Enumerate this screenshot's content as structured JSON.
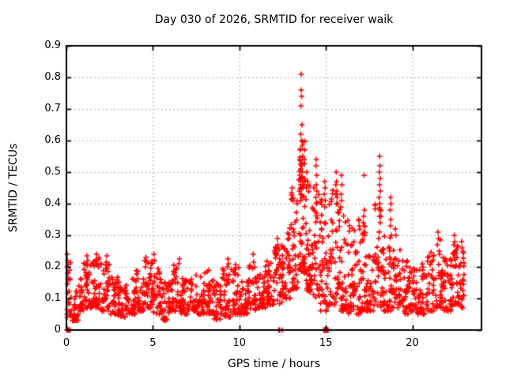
{
  "title": "Day 030 of 2026, SRMTID for receiver waik",
  "chart_data": {
    "type": "scatter",
    "title": "Day 030 of 2026, SRMTID for receiver waik",
    "xlabel": "GPS time / hours",
    "ylabel": "SRMTID / TECUs",
    "xlim": [
      0,
      24
    ],
    "ylim": [
      0,
      0.9
    ],
    "xticks": [
      0,
      5,
      10,
      15,
      20
    ],
    "yticks": [
      0,
      0.1,
      0.2,
      0.3,
      0.4,
      0.5,
      0.6,
      0.7,
      0.8,
      0.9
    ],
    "grid": true,
    "legend": "none",
    "marker": "plus",
    "marker_color": "#ff0000",
    "grid_color": "#9a9a9a",
    "border_color": "#000000",
    "peak_points": [
      [
        0.05,
        0.24
      ],
      [
        0.07,
        0.22
      ],
      [
        0.04,
        0.2
      ],
      [
        0.08,
        0.18
      ],
      [
        1.18,
        0.235
      ],
      [
        1.22,
        0.22
      ],
      [
        1.14,
        0.21
      ],
      [
        1.74,
        0.24
      ],
      [
        1.7,
        0.22
      ],
      [
        1.78,
        0.21
      ],
      [
        2.34,
        0.235
      ],
      [
        2.3,
        0.215
      ],
      [
        4.6,
        0.23
      ],
      [
        4.64,
        0.215
      ],
      [
        4.57,
        0.2
      ],
      [
        5.06,
        0.24
      ],
      [
        5.1,
        0.22
      ],
      [
        6.54,
        0.225
      ],
      [
        6.5,
        0.21
      ],
      [
        9.34,
        0.225
      ],
      [
        9.38,
        0.21
      ],
      [
        9.3,
        0.2
      ],
      [
        10.8,
        0.24
      ],
      [
        10.83,
        0.215
      ],
      [
        10.77,
        0.195
      ],
      [
        12.2,
        0.29
      ],
      [
        12.23,
        0.27
      ],
      [
        12.17,
        0.25
      ],
      [
        13.05,
        0.45
      ],
      [
        13.1,
        0.42
      ],
      [
        13.58,
        0.81
      ],
      [
        13.57,
        0.76
      ],
      [
        13.6,
        0.74
      ],
      [
        13.56,
        0.71
      ],
      [
        13.62,
        0.65
      ],
      [
        13.55,
        0.62
      ],
      [
        13.6,
        0.6
      ],
      [
        13.64,
        0.585
      ],
      [
        13.52,
        0.57
      ],
      [
        13.66,
        0.55
      ],
      [
        13.5,
        0.54
      ],
      [
        13.59,
        0.53
      ],
      [
        13.61,
        0.52
      ],
      [
        13.55,
        0.51
      ],
      [
        13.63,
        0.5
      ],
      [
        13.49,
        0.49
      ],
      [
        13.57,
        0.48
      ],
      [
        13.65,
        0.47
      ],
      [
        13.53,
        0.46
      ],
      [
        13.68,
        0.45
      ],
      [
        13.47,
        0.44
      ],
      [
        13.59,
        0.43
      ],
      [
        13.62,
        0.42
      ],
      [
        13.54,
        0.41
      ],
      [
        13.9,
        0.5
      ],
      [
        13.95,
        0.47
      ],
      [
        13.88,
        0.45
      ],
      [
        14.45,
        0.54
      ],
      [
        14.43,
        0.52
      ],
      [
        14.47,
        0.49
      ],
      [
        14.44,
        0.46
      ],
      [
        14.48,
        0.44
      ],
      [
        14.42,
        0.42
      ],
      [
        14.46,
        0.4
      ],
      [
        14.93,
        0.47
      ],
      [
        14.96,
        0.45
      ],
      [
        14.91,
        0.43
      ],
      [
        14.97,
        0.41
      ],
      [
        14.94,
        0.39
      ],
      [
        15.6,
        0.5
      ],
      [
        15.62,
        0.47
      ],
      [
        15.58,
        0.46
      ],
      [
        15.64,
        0.44
      ],
      [
        15.59,
        0.43
      ],
      [
        15.65,
        0.42
      ],
      [
        15.61,
        0.4
      ],
      [
        15.9,
        0.49
      ],
      [
        15.93,
        0.46
      ],
      [
        15.88,
        0.43
      ],
      [
        15.91,
        0.41
      ],
      [
        16.9,
        0.35
      ],
      [
        16.93,
        0.33
      ],
      [
        17.21,
        0.49
      ],
      [
        17.23,
        0.38
      ],
      [
        17.19,
        0.36
      ],
      [
        17.24,
        0.33
      ],
      [
        17.2,
        0.31
      ],
      [
        18.11,
        0.55
      ],
      [
        18.13,
        0.52
      ],
      [
        18.09,
        0.5
      ],
      [
        18.14,
        0.48
      ],
      [
        18.1,
        0.46
      ],
      [
        18.15,
        0.44
      ],
      [
        18.08,
        0.42
      ],
      [
        18.12,
        0.4
      ],
      [
        18.16,
        0.38
      ],
      [
        18.1,
        0.36
      ],
      [
        18.14,
        0.34
      ],
      [
        18.74,
        0.42
      ],
      [
        18.77,
        0.4
      ],
      [
        18.72,
        0.38
      ],
      [
        18.76,
        0.35
      ],
      [
        18.73,
        0.33
      ],
      [
        18.78,
        0.3
      ],
      [
        19.02,
        0.32
      ],
      [
        19.05,
        0.3
      ],
      [
        21.48,
        0.31
      ],
      [
        21.52,
        0.29
      ],
      [
        21.45,
        0.27
      ],
      [
        21.55,
        0.25
      ],
      [
        22.42,
        0.3
      ],
      [
        22.46,
        0.28
      ],
      [
        22.4,
        0.27
      ],
      [
        22.48,
        0.25
      ],
      [
        22.44,
        0.23
      ],
      [
        22.85,
        0.28
      ],
      [
        22.88,
        0.26
      ]
    ],
    "zero_points": [
      0.03,
      0.08,
      0.14,
      0.22,
      12.28,
      12.33,
      12.47,
      14.88,
      14.92,
      14.95,
      14.98,
      15.01,
      15.04,
      15.07,
      15.1,
      15.13
    ],
    "band_segments": [
      [
        0.0,
        0.3,
        22,
        0.04,
        0.22
      ],
      [
        0.3,
        0.7,
        26,
        0.03,
        0.13
      ],
      [
        0.7,
        1.0,
        22,
        0.06,
        0.17
      ],
      [
        1.0,
        1.5,
        36,
        0.07,
        0.22
      ],
      [
        1.5,
        2.0,
        36,
        0.07,
        0.23
      ],
      [
        2.0,
        2.5,
        36,
        0.06,
        0.21
      ],
      [
        2.5,
        3.0,
        34,
        0.05,
        0.18
      ],
      [
        3.0,
        3.5,
        32,
        0.04,
        0.16
      ],
      [
        3.5,
        4.0,
        34,
        0.05,
        0.18
      ],
      [
        4.0,
        4.5,
        34,
        0.06,
        0.2
      ],
      [
        4.5,
        5.0,
        36,
        0.07,
        0.22
      ],
      [
        5.0,
        5.5,
        34,
        0.05,
        0.21
      ],
      [
        5.5,
        6.0,
        32,
        0.03,
        0.17
      ],
      [
        6.0,
        6.5,
        34,
        0.06,
        0.21
      ],
      [
        6.5,
        7.0,
        34,
        0.05,
        0.19
      ],
      [
        7.0,
        7.5,
        34,
        0.06,
        0.18
      ],
      [
        7.5,
        8.0,
        32,
        0.05,
        0.17
      ],
      [
        8.0,
        8.5,
        34,
        0.05,
        0.19
      ],
      [
        8.5,
        9.0,
        32,
        0.03,
        0.16
      ],
      [
        9.0,
        9.5,
        34,
        0.04,
        0.2
      ],
      [
        9.5,
        10.0,
        34,
        0.05,
        0.21
      ],
      [
        10.0,
        10.5,
        32,
        0.05,
        0.16
      ],
      [
        10.5,
        11.0,
        34,
        0.06,
        0.21
      ],
      [
        11.0,
        11.5,
        34,
        0.07,
        0.19
      ],
      [
        11.5,
        12.0,
        36,
        0.08,
        0.22
      ],
      [
        12.0,
        12.5,
        38,
        0.08,
        0.27
      ],
      [
        12.5,
        13.0,
        40,
        0.1,
        0.33
      ],
      [
        13.0,
        13.4,
        36,
        0.13,
        0.44
      ],
      [
        13.4,
        13.8,
        48,
        0.18,
        0.6
      ],
      [
        13.8,
        14.2,
        42,
        0.12,
        0.5
      ],
      [
        14.2,
        14.7,
        42,
        0.1,
        0.46
      ],
      [
        14.7,
        15.2,
        42,
        0.06,
        0.42
      ],
      [
        15.2,
        15.8,
        46,
        0.08,
        0.45
      ],
      [
        15.8,
        16.3,
        42,
        0.06,
        0.4
      ],
      [
        16.3,
        16.8,
        40,
        0.05,
        0.33
      ],
      [
        16.8,
        17.3,
        40,
        0.05,
        0.35
      ],
      [
        17.3,
        17.8,
        38,
        0.06,
        0.25
      ],
      [
        17.8,
        18.3,
        40,
        0.07,
        0.4
      ],
      [
        18.3,
        18.8,
        38,
        0.06,
        0.3
      ],
      [
        18.8,
        19.3,
        38,
        0.07,
        0.3
      ],
      [
        19.3,
        19.8,
        34,
        0.05,
        0.22
      ],
      [
        19.8,
        20.3,
        34,
        0.06,
        0.2
      ],
      [
        20.3,
        20.8,
        34,
        0.05,
        0.22
      ],
      [
        20.8,
        21.3,
        34,
        0.06,
        0.26
      ],
      [
        21.3,
        21.8,
        34,
        0.07,
        0.29
      ],
      [
        21.8,
        22.3,
        34,
        0.06,
        0.23
      ],
      [
        22.3,
        22.7,
        30,
        0.08,
        0.28
      ],
      [
        22.7,
        23.0,
        26,
        0.07,
        0.26
      ]
    ],
    "band_bias_power": 1.7,
    "seed": 20260130
  }
}
